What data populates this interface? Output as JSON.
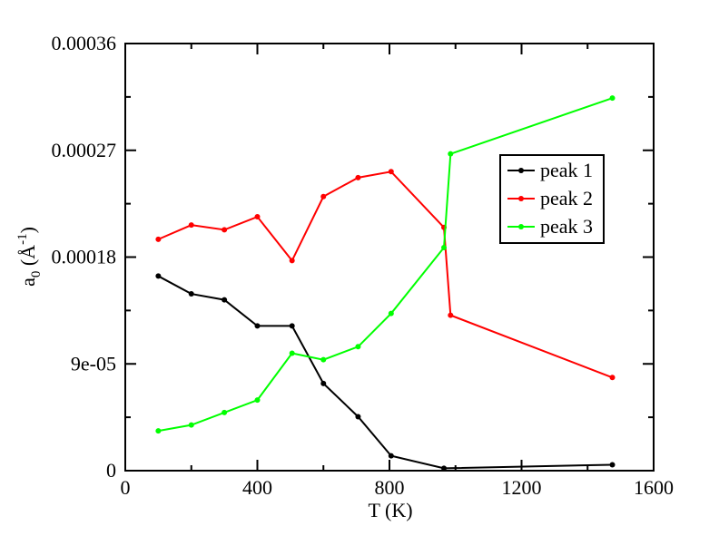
{
  "chart_data": {
    "type": "line",
    "title": "",
    "xlabel": "T (K)",
    "ylabel_main": "a",
    "ylabel_sub": "0",
    "ylabel_unit_open": " (",
    "ylabel_unit": "Å",
    "ylabel_unit_sup": "-1",
    "ylabel_unit_close": ")",
    "xlim": [
      0,
      1600
    ],
    "ylim": [
      0,
      0.00036
    ],
    "xticks": [
      0,
      400,
      800,
      1200,
      1600
    ],
    "xtick_labels": [
      "0",
      "400",
      "800",
      "1200",
      "1600"
    ],
    "yticks": [
      0,
      9e-05,
      0.00018,
      0.00027,
      0.00036
    ],
    "ytick_labels": [
      "0",
      "9e-05",
      "0.00018",
      "0.00027",
      "0.00036"
    ],
    "legend_position": "right",
    "grid": false,
    "series": [
      {
        "name": "peak 1",
        "color": "#000000",
        "x": [
          100,
          200,
          300,
          400,
          505,
          600,
          705,
          805,
          965,
          1475
        ],
        "y": [
          0.000164,
          0.000149,
          0.000144,
          0.000122,
          0.000122,
          7.35e-05,
          4.55e-05,
          1.25e-05,
          2e-06,
          5e-06
        ]
      },
      {
        "name": "peak 2",
        "color": "#ff0000",
        "x": [
          100,
          200,
          300,
          400,
          505,
          600,
          705,
          805,
          965,
          985,
          1475
        ],
        "y": [
          0.000195,
          0.000207,
          0.000203,
          0.000214,
          0.000177,
          0.000231,
          0.000247,
          0.000252,
          0.000205,
          0.000131,
          7.85e-05
        ]
      },
      {
        "name": "peak 3",
        "color": "#00ff00",
        "x": [
          100,
          200,
          300,
          400,
          505,
          600,
          705,
          805,
          965,
          985,
          1475
        ],
        "y": [
          3.35e-05,
          3.85e-05,
          4.9e-05,
          5.95e-05,
          9.9e-05,
          9.35e-05,
          0.0001045,
          0.0001325,
          0.000188,
          0.000267,
          0.000314
        ]
      }
    ]
  }
}
